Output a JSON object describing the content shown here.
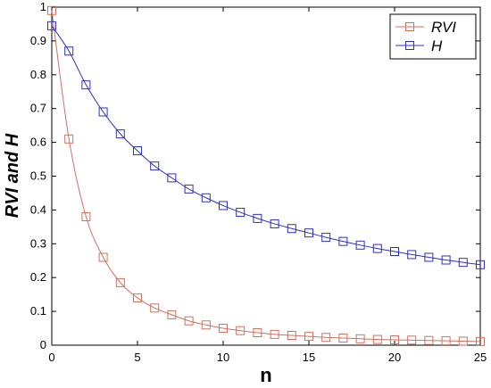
{
  "chart_data": {
    "type": "line",
    "xlabel": "n",
    "ylabel": "RVI and H",
    "xlim": [
      0,
      25
    ],
    "ylim": [
      0,
      1
    ],
    "x_ticks": [
      0,
      5,
      10,
      15,
      20,
      25
    ],
    "y_ticks": [
      0,
      0.1,
      0.2,
      0.3,
      0.4,
      0.5,
      0.6,
      0.7,
      0.8,
      0.9,
      1
    ],
    "grid": false,
    "legend_position": "top-right",
    "x": [
      0,
      1,
      2,
      3,
      4,
      5,
      6,
      7,
      8,
      9,
      10,
      11,
      12,
      13,
      14,
      15,
      16,
      17,
      18,
      19,
      20,
      21,
      22,
      23,
      24,
      25
    ],
    "series": [
      {
        "name": "RVI",
        "color": "#d07060",
        "marker": "square",
        "values": [
          0.99,
          0.61,
          0.38,
          0.26,
          0.185,
          0.14,
          0.11,
          0.09,
          0.072,
          0.06,
          0.05,
          0.043,
          0.037,
          0.032,
          0.029,
          0.026,
          0.023,
          0.021,
          0.019,
          0.017,
          0.016,
          0.015,
          0.014,
          0.013,
          0.012,
          0.011
        ]
      },
      {
        "name": "H",
        "color": "#3030c0",
        "marker": "square",
        "values": [
          0.945,
          0.87,
          0.77,
          0.69,
          0.625,
          0.575,
          0.53,
          0.495,
          0.462,
          0.436,
          0.413,
          0.393,
          0.375,
          0.359,
          0.345,
          0.332,
          0.319,
          0.307,
          0.296,
          0.286,
          0.277,
          0.268,
          0.26,
          0.252,
          0.245,
          0.238
        ]
      }
    ]
  }
}
